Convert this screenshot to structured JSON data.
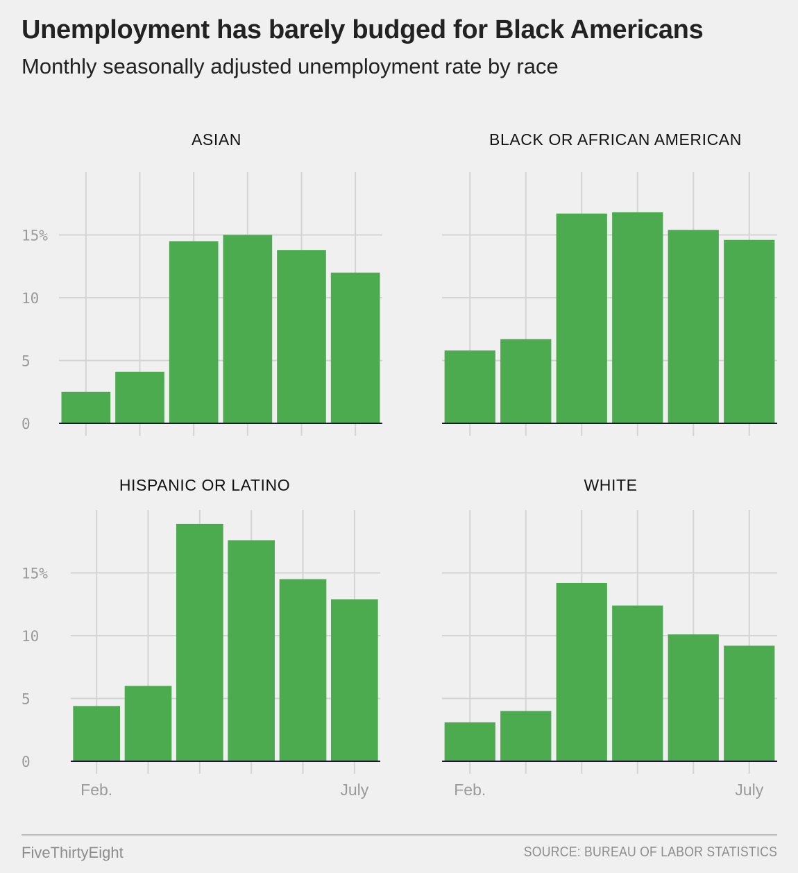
{
  "header": {
    "title": "Unemployment has barely budged for Black Americans",
    "subtitle": "Monthly seasonally adjusted unemployment rate by race"
  },
  "footer": {
    "brand": "FiveThirtyEight",
    "source": "SOURCE: BUREAU OF LABOR STATISTICS"
  },
  "colors": {
    "bar": "#4caa4f",
    "grid": "#d4d4d4",
    "baseline": "#1a1a2e",
    "background": "#f0f0f0"
  },
  "chart_data": [
    {
      "type": "bar",
      "title": "ASIAN",
      "categories": [
        "Feb.",
        "",
        "",
        "",
        "",
        "July"
      ],
      "x_tick_labels": [
        "",
        "",
        "",
        "",
        "",
        ""
      ],
      "values": [
        2.5,
        4.1,
        14.5,
        15.0,
        13.8,
        12.0
      ],
      "yticks": [
        "0",
        "5",
        "10",
        "15%"
      ],
      "ylim": [
        0,
        20
      ],
      "grid": true
    },
    {
      "type": "bar",
      "title": "BLACK OR AFRICAN AMERICAN",
      "categories": [
        "Feb.",
        "",
        "",
        "",
        "",
        "July"
      ],
      "x_tick_labels": [
        "",
        "",
        "",
        "",
        "",
        ""
      ],
      "values": [
        5.8,
        6.7,
        16.7,
        16.8,
        15.4,
        14.6
      ],
      "yticks": [
        "",
        "",
        "",
        ""
      ],
      "ylim": [
        0,
        20
      ],
      "grid": true
    },
    {
      "type": "bar",
      "title": "HISPANIC OR LATINO",
      "categories": [
        "Feb.",
        "",
        "",
        "",
        "",
        "July"
      ],
      "x_tick_labels": [
        "Feb.",
        "",
        "",
        "",
        "",
        "July"
      ],
      "values": [
        4.4,
        6.0,
        18.9,
        17.6,
        14.5,
        12.9
      ],
      "yticks": [
        "0",
        "5",
        "10",
        "15%"
      ],
      "ylim": [
        0,
        20
      ],
      "grid": true
    },
    {
      "type": "bar",
      "title": "WHITE",
      "categories": [
        "Feb.",
        "",
        "",
        "",
        "",
        "July"
      ],
      "x_tick_labels": [
        "Feb.",
        "",
        "",
        "",
        "",
        "July"
      ],
      "values": [
        3.1,
        4.0,
        14.2,
        12.4,
        10.1,
        9.2
      ],
      "yticks": [
        "",
        "",
        "",
        ""
      ],
      "ylim": [
        0,
        20
      ],
      "grid": true
    }
  ]
}
